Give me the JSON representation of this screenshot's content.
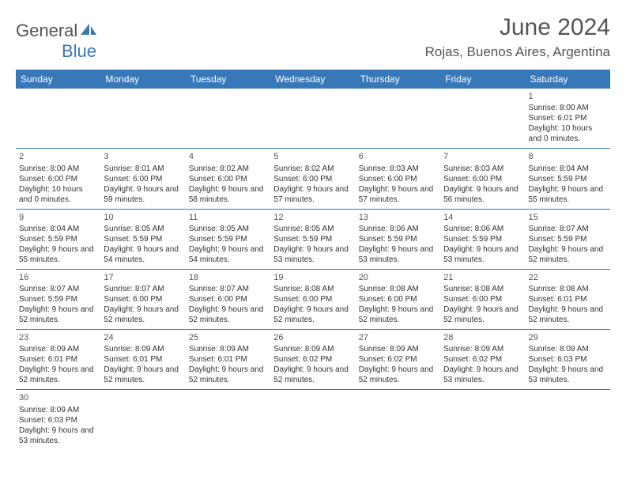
{
  "logo": {
    "text1": "General",
    "text2": "Blue"
  },
  "title": "June 2024",
  "location": "Rojas, Buenos Aires, Argentina",
  "colors": {
    "header_bg": "#3878b8",
    "header_fg": "#ffffff",
    "border": "#3878b8",
    "text": "#333333",
    "title": "#555555"
  },
  "weekdays": [
    "Sunday",
    "Monday",
    "Tuesday",
    "Wednesday",
    "Thursday",
    "Friday",
    "Saturday"
  ],
  "weeks": [
    [
      null,
      null,
      null,
      null,
      null,
      null,
      {
        "n": "1",
        "sr": "8:00 AM",
        "ss": "6:01 PM",
        "dl": "10 hours and 0 minutes."
      }
    ],
    [
      {
        "n": "2",
        "sr": "8:00 AM",
        "ss": "6:00 PM",
        "dl": "10 hours and 0 minutes."
      },
      {
        "n": "3",
        "sr": "8:01 AM",
        "ss": "6:00 PM",
        "dl": "9 hours and 59 minutes."
      },
      {
        "n": "4",
        "sr": "8:02 AM",
        "ss": "6:00 PM",
        "dl": "9 hours and 58 minutes."
      },
      {
        "n": "5",
        "sr": "8:02 AM",
        "ss": "6:00 PM",
        "dl": "9 hours and 57 minutes."
      },
      {
        "n": "6",
        "sr": "8:03 AM",
        "ss": "6:00 PM",
        "dl": "9 hours and 57 minutes."
      },
      {
        "n": "7",
        "sr": "8:03 AM",
        "ss": "6:00 PM",
        "dl": "9 hours and 56 minutes."
      },
      {
        "n": "8",
        "sr": "8:04 AM",
        "ss": "5:59 PM",
        "dl": "9 hours and 55 minutes."
      }
    ],
    [
      {
        "n": "9",
        "sr": "8:04 AM",
        "ss": "5:59 PM",
        "dl": "9 hours and 55 minutes."
      },
      {
        "n": "10",
        "sr": "8:05 AM",
        "ss": "5:59 PM",
        "dl": "9 hours and 54 minutes."
      },
      {
        "n": "11",
        "sr": "8:05 AM",
        "ss": "5:59 PM",
        "dl": "9 hours and 54 minutes."
      },
      {
        "n": "12",
        "sr": "8:05 AM",
        "ss": "5:59 PM",
        "dl": "9 hours and 53 minutes."
      },
      {
        "n": "13",
        "sr": "8:06 AM",
        "ss": "5:59 PM",
        "dl": "9 hours and 53 minutes."
      },
      {
        "n": "14",
        "sr": "8:06 AM",
        "ss": "5:59 PM",
        "dl": "9 hours and 53 minutes."
      },
      {
        "n": "15",
        "sr": "8:07 AM",
        "ss": "5:59 PM",
        "dl": "9 hours and 52 minutes."
      }
    ],
    [
      {
        "n": "16",
        "sr": "8:07 AM",
        "ss": "5:59 PM",
        "dl": "9 hours and 52 minutes."
      },
      {
        "n": "17",
        "sr": "8:07 AM",
        "ss": "6:00 PM",
        "dl": "9 hours and 52 minutes."
      },
      {
        "n": "18",
        "sr": "8:07 AM",
        "ss": "6:00 PM",
        "dl": "9 hours and 52 minutes."
      },
      {
        "n": "19",
        "sr": "8:08 AM",
        "ss": "6:00 PM",
        "dl": "9 hours and 52 minutes."
      },
      {
        "n": "20",
        "sr": "8:08 AM",
        "ss": "6:00 PM",
        "dl": "9 hours and 52 minutes."
      },
      {
        "n": "21",
        "sr": "8:08 AM",
        "ss": "6:00 PM",
        "dl": "9 hours and 52 minutes."
      },
      {
        "n": "22",
        "sr": "8:08 AM",
        "ss": "6:01 PM",
        "dl": "9 hours and 52 minutes."
      }
    ],
    [
      {
        "n": "23",
        "sr": "8:09 AM",
        "ss": "6:01 PM",
        "dl": "9 hours and 52 minutes."
      },
      {
        "n": "24",
        "sr": "8:09 AM",
        "ss": "6:01 PM",
        "dl": "9 hours and 52 minutes."
      },
      {
        "n": "25",
        "sr": "8:09 AM",
        "ss": "6:01 PM",
        "dl": "9 hours and 52 minutes."
      },
      {
        "n": "26",
        "sr": "8:09 AM",
        "ss": "6:02 PM",
        "dl": "9 hours and 52 minutes."
      },
      {
        "n": "27",
        "sr": "8:09 AM",
        "ss": "6:02 PM",
        "dl": "9 hours and 52 minutes."
      },
      {
        "n": "28",
        "sr": "8:09 AM",
        "ss": "6:02 PM",
        "dl": "9 hours and 53 minutes."
      },
      {
        "n": "29",
        "sr": "8:09 AM",
        "ss": "6:03 PM",
        "dl": "9 hours and 53 minutes."
      }
    ],
    [
      {
        "n": "30",
        "sr": "8:09 AM",
        "ss": "6:03 PM",
        "dl": "9 hours and 53 minutes."
      },
      null,
      null,
      null,
      null,
      null,
      null
    ]
  ],
  "labels": {
    "sunrise": "Sunrise:",
    "sunset": "Sunset:",
    "daylight": "Daylight:"
  }
}
